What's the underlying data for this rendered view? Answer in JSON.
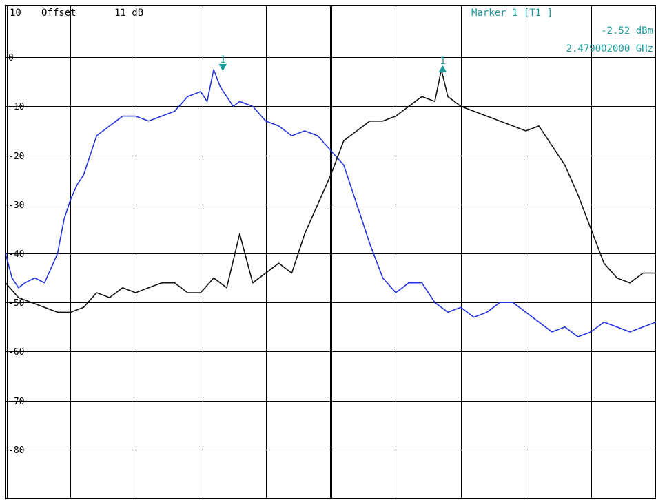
{
  "header": {
    "ref_level": "10",
    "offset_label": "Offset",
    "offset_value": "11 dB"
  },
  "marker_info": {
    "title": "Marker 1 [T1 ]",
    "level": "-2.52 dBm",
    "freq": "2.479002000 GHz",
    "color": "#1a9a9a"
  },
  "chart_data": {
    "type": "line",
    "ylim": [
      -90,
      10
    ],
    "xlim": [
      0,
      10
    ],
    "grid": true,
    "y_tick_labels": [
      "0",
      "-10",
      "-20",
      "-30",
      "-40",
      "-50",
      "-60",
      "-70",
      "-80"
    ],
    "y_tick_values": [
      0,
      -10,
      -20,
      -30,
      -40,
      -50,
      -60,
      -70,
      -80
    ],
    "series": [
      {
        "color": "#2233dd",
        "x": [
          0,
          0.1,
          0.2,
          0.3,
          0.45,
          0.6,
          0.7,
          0.8,
          0.9,
          1.0,
          1.1,
          1.2,
          1.3,
          1.4,
          1.5,
          1.6,
          1.7,
          1.8,
          2.0,
          2.2,
          2.4,
          2.6,
          2.8,
          3.0,
          3.1,
          3.2,
          3.3,
          3.4,
          3.5,
          3.6,
          3.8,
          4.0,
          4.2,
          4.4,
          4.6,
          4.8,
          5.0,
          5.2,
          5.4,
          5.6,
          5.8,
          6.0,
          6.2,
          6.4,
          6.6,
          6.8,
          7.0,
          7.2,
          7.4,
          7.6,
          7.8,
          8.0,
          8.2,
          8.4,
          8.6,
          8.8,
          9.0,
          9.2,
          9.4,
          9.6,
          9.8,
          10.0
        ],
        "y": [
          -40,
          -45,
          -47,
          -46,
          -45,
          -46,
          -43,
          -40,
          -33,
          -29,
          -26,
          -24,
          -20,
          -16,
          -15,
          -14,
          -13,
          -12,
          -12,
          -13,
          -12,
          -11,
          -8,
          -7,
          -9,
          -2.5,
          -6,
          -8,
          -10,
          -9,
          -10,
          -13,
          -14,
          -16,
          -15,
          -16,
          -19,
          -22,
          -30,
          -38,
          -45,
          -48,
          -46,
          -46,
          -50,
          -52,
          -51,
          -53,
          -52,
          -50,
          -50,
          -52,
          -54,
          -56,
          -55,
          -57,
          -56,
          -54,
          -55,
          -56,
          -55,
          -54
        ]
      },
      {
        "color": "#111111",
        "x": [
          0,
          0.2,
          0.4,
          0.6,
          0.8,
          1.0,
          1.2,
          1.4,
          1.6,
          1.8,
          2.0,
          2.2,
          2.4,
          2.6,
          2.8,
          3.0,
          3.2,
          3.4,
          3.6,
          3.8,
          4.0,
          4.2,
          4.4,
          4.6,
          4.8,
          5.0,
          5.2,
          5.4,
          5.6,
          5.8,
          6.0,
          6.2,
          6.4,
          6.6,
          6.7,
          6.8,
          7.0,
          7.2,
          7.4,
          7.6,
          7.8,
          8.0,
          8.2,
          8.4,
          8.6,
          8.8,
          9.0,
          9.2,
          9.4,
          9.6,
          9.8,
          10.0
        ],
        "y": [
          -46,
          -49,
          -50,
          -51,
          -52,
          -52,
          -51,
          -48,
          -49,
          -47,
          -48,
          -47,
          -46,
          -46,
          -48,
          -48,
          -45,
          -47,
          -36,
          -46,
          -44,
          -42,
          -44,
          -36,
          -30,
          -24,
          -17,
          -15,
          -13,
          -13,
          -12,
          -10,
          -8,
          -9,
          -2.5,
          -8,
          -10,
          -11,
          -12,
          -13,
          -14,
          -15,
          -14,
          -18,
          -22,
          -28,
          -35,
          -42,
          -45,
          -46,
          -44,
          -44
        ]
      }
    ],
    "markers": [
      {
        "label": "1",
        "x": 3.34,
        "y": -2.5,
        "direction": "down",
        "color": "#1a9a9a"
      },
      {
        "label": "1",
        "x": 6.72,
        "y": -2.5,
        "direction": "up",
        "color": "#1a9a9a"
      }
    ]
  }
}
